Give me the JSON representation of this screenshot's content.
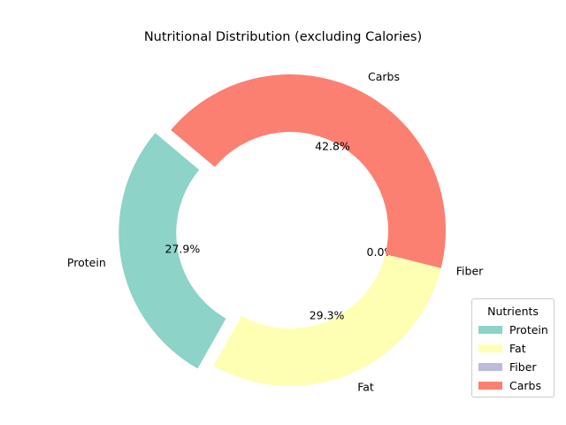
{
  "chart_data": {
    "type": "pie",
    "title": "Nutritional Distribution (excluding Calories)",
    "categories": [
      "Protein",
      "Fat",
      "Fiber",
      "Carbs"
    ],
    "values": [
      27.9,
      29.3,
      0.0,
      42.8
    ],
    "value_labels": [
      "27.9%",
      "29.3%",
      "0.0%",
      "42.8%"
    ],
    "colors": [
      "#8dd3c7",
      "#ffffb3",
      "#bebada",
      "#fb8072"
    ],
    "exploded": [
      "Protein"
    ],
    "donut": true,
    "legend": {
      "title": "Nutrients",
      "placement": "lower-right",
      "items": [
        "Protein",
        "Fat",
        "Fiber",
        "Carbs"
      ]
    }
  }
}
